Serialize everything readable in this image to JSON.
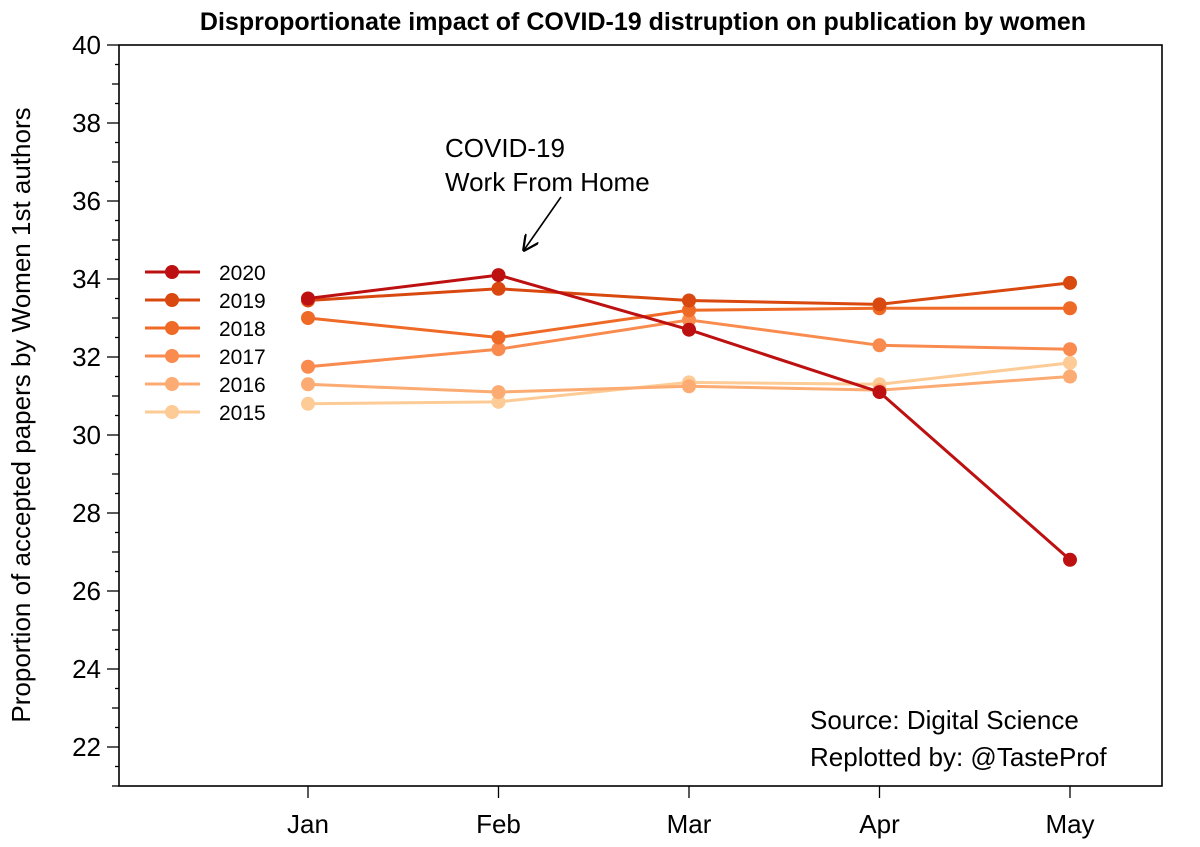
{
  "chart_data": {
    "type": "line",
    "title": "Disproportionate impact of COVID-19 distruption on publication by women",
    "xlabel": "",
    "ylabel": "Proportion of accepted papers by Women 1st authors",
    "categories": [
      "Jan",
      "Feb",
      "Mar",
      "Apr",
      "May"
    ],
    "ylim": [
      21,
      40
    ],
    "yticks": [
      22,
      24,
      26,
      28,
      30,
      32,
      34,
      36,
      38,
      40
    ],
    "grid": false,
    "legend_position": "left",
    "series": [
      {
        "name": "2015",
        "color": "#fdcb95",
        "values": [
          30.8,
          30.85,
          31.35,
          31.3,
          31.85
        ]
      },
      {
        "name": "2016",
        "color": "#fcab72",
        "values": [
          31.3,
          31.1,
          31.25,
          31.15,
          31.5
        ]
      },
      {
        "name": "2017",
        "color": "#f98b4f",
        "values": [
          31.75,
          32.2,
          32.95,
          32.3,
          32.2
        ]
      },
      {
        "name": "2018",
        "color": "#f06a27",
        "values": [
          33.0,
          32.5,
          33.2,
          33.25,
          33.25
        ]
      },
      {
        "name": "2019",
        "color": "#d9480f",
        "values": [
          33.45,
          33.75,
          33.45,
          33.35,
          33.9
        ]
      },
      {
        "name": "2020",
        "color": "#bd1111",
        "values": [
          33.5,
          34.1,
          32.7,
          31.1,
          26.8
        ]
      }
    ],
    "annotation": {
      "line1": "COVID-19",
      "line2": "Work From Home",
      "points_to": {
        "category": "Feb",
        "value": 34.7
      }
    },
    "source_line1": "Source: Digital Science",
    "source_line2": "Replotted by: @TasteProf"
  }
}
